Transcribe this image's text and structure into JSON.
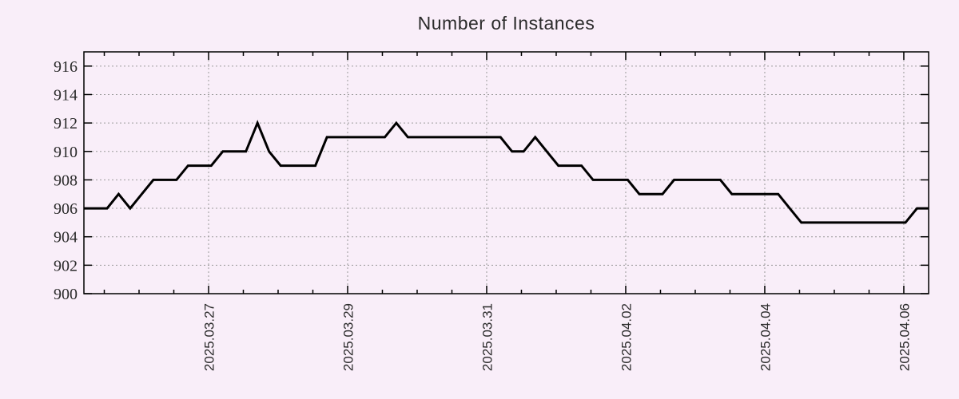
{
  "figure": {
    "background": "#f9eef9"
  },
  "chart_data": {
    "type": "line",
    "title": "Number of Instances",
    "xlabel": "",
    "ylabel": "",
    "legend": "none",
    "grid": "dotted",
    "ylim": [
      900,
      917
    ],
    "y_ticks": [
      900,
      902,
      904,
      906,
      908,
      910,
      912,
      914,
      916
    ],
    "xlim_days": [
      0,
      12.15
    ],
    "x_minor_tick_every_days": 0.5,
    "x_ticks": [
      {
        "label": "2025.03.27",
        "day": 1.7931
      },
      {
        "label": "2025.03.29",
        "day": 3.7931
      },
      {
        "label": "2025.03.31",
        "day": 5.7931
      },
      {
        "label": "2025.04.02",
        "day": 7.7931
      },
      {
        "label": "2025.04.04",
        "day": 9.7931
      },
      {
        "label": "2025.04.06",
        "day": 11.7931
      }
    ],
    "series": [
      {
        "name": "instances",
        "sample_interval_hours": 4,
        "values": [
          906,
          906,
          906,
          907,
          906,
          907,
          908,
          908,
          908,
          909,
          909,
          909,
          910,
          910,
          910,
          912,
          910,
          909,
          909,
          909,
          909,
          911,
          911,
          911,
          911,
          911,
          911,
          912,
          911,
          911,
          911,
          911,
          911,
          911,
          911,
          911,
          911,
          910,
          910,
          911,
          910,
          909,
          909,
          909,
          908,
          908,
          908,
          908,
          907,
          907,
          907,
          908,
          908,
          908,
          908,
          908,
          907,
          907,
          907,
          907,
          907,
          906,
          905,
          905,
          905,
          905,
          905,
          905,
          905,
          905,
          905,
          905,
          906,
          906
        ]
      }
    ],
    "colors": {
      "line": "#000000",
      "grid": "#9a9a9a",
      "axis": "#000000",
      "text": "#2b2b2b",
      "background": "#f9eef9"
    }
  }
}
